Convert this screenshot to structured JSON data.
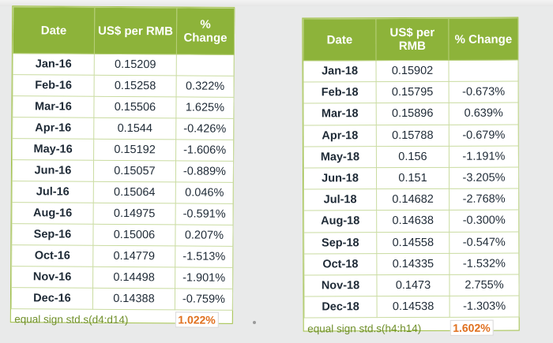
{
  "left_table": {
    "headers": [
      "Date",
      "US$ per RMB",
      "% Change"
    ],
    "rows": [
      [
        "Jan-16",
        "0.15209",
        ""
      ],
      [
        "Feb-16",
        "0.15258",
        "0.322%"
      ],
      [
        "Mar-16",
        "0.15506",
        "1.625%"
      ],
      [
        "Apr-16",
        "0.1544",
        "-0.426%"
      ],
      [
        "May-16",
        "0.15192",
        "-1.606%"
      ],
      [
        "Jun-16",
        "0.15057",
        "-0.889%"
      ],
      [
        "Jul-16",
        "0.15064",
        "0.046%"
      ],
      [
        "Aug-16",
        "0.14975",
        "-0.591%"
      ],
      [
        "Sep-16",
        "0.15006",
        "0.207%"
      ],
      [
        "Oct-16",
        "0.14779",
        "-1.513%"
      ],
      [
        "Nov-16",
        "0.14498",
        "-1.901%"
      ],
      [
        "Dec-16",
        "0.14388",
        "-0.759%"
      ]
    ],
    "footer_label": "equal sign std.s(d4:d14)",
    "footer_value": "1.022%"
  },
  "right_table": {
    "headers": [
      "Date",
      "US$ per RMB",
      "% Change"
    ],
    "rows": [
      [
        "Jan-18",
        "0.15902",
        ""
      ],
      [
        "Feb-18",
        "0.15795",
        "-0.673%"
      ],
      [
        "Mar-18",
        "0.15896",
        "0.639%"
      ],
      [
        "Apr-18",
        "0.15788",
        "-0.679%"
      ],
      [
        "May-18",
        "0.156",
        "-1.191%"
      ],
      [
        "Jun-18",
        "0.151",
        "-3.205%"
      ],
      [
        "Jul-18",
        "0.14682",
        "-2.768%"
      ],
      [
        "Aug-18",
        "0.14638",
        "-0.300%"
      ],
      [
        "Sep-18",
        "0.14558",
        "-0.547%"
      ],
      [
        "Oct-18",
        "0.14335",
        "-1.532%"
      ],
      [
        "Nov-18",
        "0.1473",
        "2.755%"
      ],
      [
        "Dec-18",
        "0.14538",
        "-1.303%"
      ]
    ],
    "footer_label": "equal sign std.s(h4:h14)",
    "footer_value": "1.602%"
  },
  "colors": {
    "header_green": "#8db33a",
    "grid_green": "#c9dba0",
    "footer_orange": "#e0701e",
    "footer_label_green": "#6f8f2a"
  }
}
